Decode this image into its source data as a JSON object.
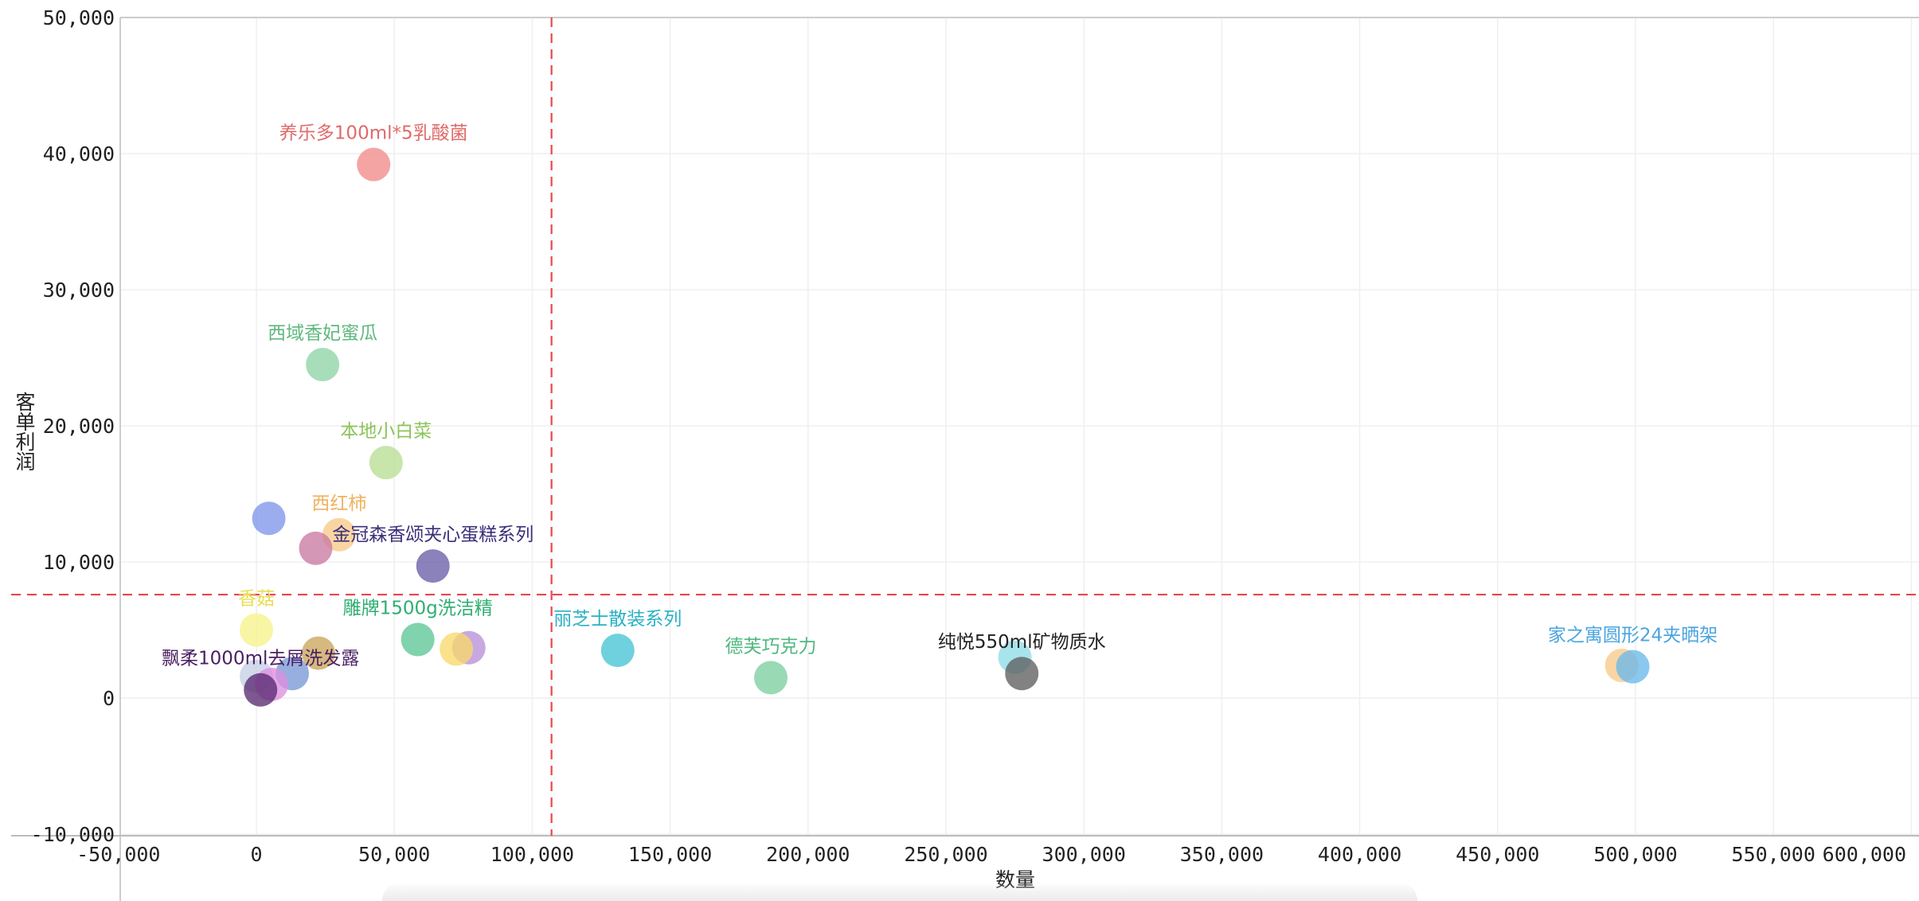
{
  "chart_data": {
    "type": "scatter",
    "xlabel": "数量",
    "ylabel": "客单利润",
    "xlim": [
      -50000,
      600000
    ],
    "ylim": [
      -10000,
      50000
    ],
    "x_ticks": [
      "-50,000",
      "0",
      "50,000",
      "100,000",
      "150,000",
      "200,000",
      "250,000",
      "300,000",
      "350,000",
      "400,000",
      "450,000",
      "500,000",
      "550,000",
      "600,000"
    ],
    "x_tick_values": [
      -50000,
      0,
      50000,
      100000,
      150000,
      200000,
      250000,
      300000,
      350000,
      400000,
      450000,
      500000,
      550000,
      600000
    ],
    "y_ticks": [
      "-10,000",
      "0",
      "10,000",
      "20,000",
      "30,000",
      "40,000",
      "50,000"
    ],
    "y_tick_values": [
      -10000,
      0,
      10000,
      20000,
      30000,
      40000,
      50000
    ],
    "reference_lines": {
      "x": 107000,
      "y": 7600,
      "color": "#e8464f"
    },
    "points": [
      {
        "label": "养乐多100ml*5乳酸菌",
        "x": 42500,
        "y": 39200,
        "color": "#f28b8b",
        "label_color": "#e06a6a"
      },
      {
        "label": "西域香妃蜜瓜",
        "x": 24000,
        "y": 24500,
        "color": "#8fd3a6",
        "label_color": "#5fb87f"
      },
      {
        "label": "本地小白菜",
        "x": 47000,
        "y": 17300,
        "color": "#b9de95",
        "label_color": "#8cc45a"
      },
      {
        "label": "",
        "x": 4500,
        "y": 13200,
        "color": "#7f96ea",
        "label_color": "#7f96ea"
      },
      {
        "label": "西红柿",
        "x": 30000,
        "y": 12000,
        "color": "#f9c98a",
        "label_color": "#f0b25e"
      },
      {
        "label": "",
        "x": 21500,
        "y": 11000,
        "color": "#c97aa2",
        "label_color": "#c97aa2"
      },
      {
        "label": "金冠森香颂夹心蛋糕系列",
        "x": 64000,
        "y": 9700,
        "color": "#6a5ea8",
        "label_color": "#3a2f7a"
      },
      {
        "label": "香菇",
        "x": 0,
        "y": 5000,
        "color": "#f6f28a",
        "label_color": "#e8de50"
      },
      {
        "label": "雕牌1500g洗洁精",
        "x": 58500,
        "y": 4300,
        "color": "#5cc695",
        "label_color": "#2fae72"
      },
      {
        "label": "",
        "x": 77000,
        "y": 3700,
        "color": "#b98fd9",
        "label_color": "#b98fd9"
      },
      {
        "label": "",
        "x": 72500,
        "y": 3600,
        "color": "#f8d96a",
        "label_color": "#f8d96a"
      },
      {
        "label": "",
        "x": 22500,
        "y": 3300,
        "color": "#c9a55a",
        "label_color": "#c9a55a"
      },
      {
        "label": "",
        "x": 13000,
        "y": 1800,
        "color": "#7899d6",
        "label_color": "#7899d6"
      },
      {
        "label": "",
        "x": 0,
        "y": 1600,
        "color": "#c7cfe6",
        "label_color": "#c7cfe6"
      },
      {
        "label": "",
        "x": 5500,
        "y": 1000,
        "color": "#dc8fe0",
        "label_color": "#dc8fe0"
      },
      {
        "label": "飘柔1000ml去屑洗发露",
        "x": 1500,
        "y": 600,
        "color": "#5a2a72",
        "label_color": "#4a1f62"
      },
      {
        "label": "丽芝士散装系列",
        "x": 131000,
        "y": 3500,
        "color": "#46c4d4",
        "label_color": "#2ab0c3"
      },
      {
        "label": "德芙巧克力",
        "x": 186500,
        "y": 1500,
        "color": "#7ccfa0",
        "label_color": "#4fb87e"
      },
      {
        "label": "",
        "x": 275000,
        "y": 3000,
        "color": "#8fdde6",
        "label_color": "#8fdde6"
      },
      {
        "label": "纯悦550ml矿物质水",
        "x": 277500,
        "y": 1800,
        "color": "#5f5f5f",
        "label_color": "#222222"
      },
      {
        "label": "",
        "x": 495000,
        "y": 2400,
        "color": "#f9c98a",
        "label_color": "#f9c98a"
      },
      {
        "label": "家之寓圆形24夹晒架",
        "x": 499000,
        "y": 2300,
        "color": "#6ab8ec",
        "label_color": "#4aa4e0"
      }
    ]
  }
}
